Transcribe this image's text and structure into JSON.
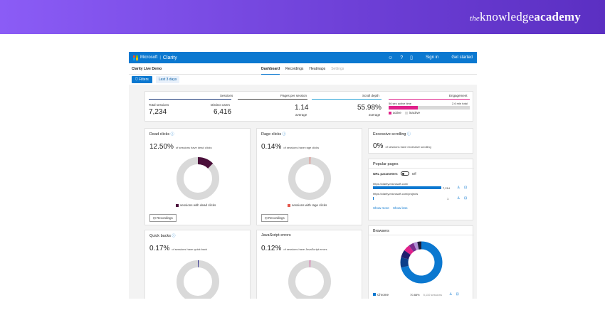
{
  "banner": {
    "brand_the": "the",
    "brand_knowledge": "knowledge",
    "brand_academy": "academy"
  },
  "topbar": {
    "vendor": "Microsoft",
    "product": "Clarity",
    "signin": "Sign in",
    "get_started": "Get started",
    "icons": [
      "smiley-icon",
      "help-icon",
      "document-icon"
    ]
  },
  "subbar": {
    "project": "Clarity Live Demo",
    "tabs": [
      "Dashboard",
      "Recordings",
      "Heatmaps",
      "Settings"
    ]
  },
  "filters": {
    "filters_label": "Filters",
    "range_label": "Last 3 days"
  },
  "summary": {
    "sessions_title": "Sessions",
    "total_sessions_label": "Total sessions",
    "total_sessions": "7,234",
    "distinct_users_label": "Distinct users",
    "distinct_users": "6,416",
    "pages_title": "Pages per session",
    "pages_value": "1.14",
    "pages_sub": "average",
    "scroll_title": "Scroll depth",
    "scroll_value": "55.98%",
    "scroll_sub": "average",
    "engagement_title": "Engagement",
    "active_time": "56 sec active time",
    "total_time": "2.6 min total",
    "engagement_active": 0.36,
    "active_label": "active",
    "inactive_label": "inactive"
  },
  "dead": {
    "title": "Dead clicks",
    "pct": "12.50%",
    "desc": "of sessions have dead clicks",
    "legend": "sessions with dead clicks",
    "value": 12.5,
    "color": "#4a0f3a",
    "button": "Recordings"
  },
  "rage": {
    "title": "Rage clicks",
    "pct": "0.14%",
    "desc": "of sessions have rage clicks",
    "legend": "sessions with rage clicks",
    "value": 0.14,
    "color": "#e4564b",
    "button": "Recordings"
  },
  "excessive": {
    "title": "Excessive scrolling",
    "pct": "0%",
    "desc": "of sessions have excessive scrolling"
  },
  "popular": {
    "title": "Popular pages",
    "url_params_label": "URL parameters",
    "toggle_state": "Off",
    "pages": [
      {
        "url": "https://clarity.microsoft.com/",
        "count": "7,214",
        "fraction": 1.0
      },
      {
        "url": "https://clarity.microsoft.com/projects",
        "count": "1",
        "fraction": 0.01
      }
    ],
    "show_more": "Show more",
    "show_less": "Show less"
  },
  "quick": {
    "title": "Quick backs",
    "pct": "0.17%",
    "desc": "of sessions have quick back",
    "value": 0.17,
    "color": "#2b2a8a"
  },
  "js": {
    "title": "JavaScript errors",
    "pct": "0.12%",
    "desc": "of sessions have JavaScript errors",
    "value": 0.12,
    "color": "#d4388f"
  },
  "browsers": {
    "title": "Browsers",
    "segments": [
      {
        "value": 70.88,
        "color": "#0b78d0"
      },
      {
        "value": 8,
        "color": "#0c3f8a"
      },
      {
        "value": 6,
        "color": "#1f1f6e"
      },
      {
        "value": 5,
        "color": "#e0218a"
      },
      {
        "value": 4,
        "color": "#7a2e8e"
      },
      {
        "value": 3,
        "color": "#b08fd6"
      },
      {
        "value": 3.12,
        "color": "#1e1e3a"
      }
    ],
    "legend_name": "Chrome",
    "legend_pct": "70.88%",
    "legend_sessions": "5,110 sessions",
    "legend_color": "#0b78d0"
  }
}
